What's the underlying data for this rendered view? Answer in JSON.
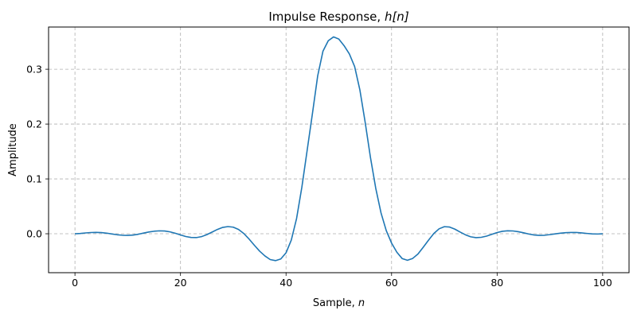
{
  "chart_data": {
    "type": "line",
    "title": {
      "prefix": "Impulse Response, ",
      "math": "h[n]"
    },
    "xlabel": {
      "prefix": "Sample, ",
      "math": "n"
    },
    "ylabel": "Amplitude",
    "xlim": [
      -5,
      105
    ],
    "ylim": [
      -0.071,
      0.377
    ],
    "x_ticks": [
      0,
      20,
      40,
      60,
      80,
      100
    ],
    "y_ticks": [
      0.0,
      0.1,
      0.2,
      0.3
    ],
    "y_tick_labels": [
      "0.0",
      "0.1",
      "0.2",
      "0.3"
    ],
    "grid": true,
    "legend": "none",
    "series": [
      {
        "color": "#1f77b4",
        "x": [
          0,
          1,
          2,
          3,
          4,
          5,
          6,
          7,
          8,
          9,
          10,
          11,
          12,
          13,
          14,
          15,
          16,
          17,
          18,
          19,
          20,
          21,
          22,
          23,
          24,
          25,
          26,
          27,
          28,
          29,
          30,
          31,
          32,
          33,
          34,
          35,
          36,
          37,
          38,
          39,
          40,
          41,
          42,
          43,
          44,
          45,
          46,
          47,
          48,
          49,
          50,
          51,
          52,
          53,
          54,
          55,
          56,
          57,
          58,
          59,
          60,
          61,
          62,
          63,
          64,
          65,
          66,
          67,
          68,
          69,
          70,
          71,
          72,
          73,
          74,
          75,
          76,
          77,
          78,
          79,
          80,
          81,
          82,
          83,
          84,
          85,
          86,
          87,
          88,
          89,
          90,
          91,
          92,
          93,
          94,
          95,
          96,
          97,
          98,
          99,
          100
        ],
        "values": [
          0.0,
          0.0005,
          0.0015,
          0.0022,
          0.0025,
          0.0021,
          0.0011,
          -0.0004,
          -0.0018,
          -0.0027,
          -0.003,
          -0.0024,
          -0.0009,
          0.0012,
          0.0032,
          0.0046,
          0.0053,
          0.005,
          0.0035,
          0.001,
          -0.0021,
          -0.005,
          -0.0068,
          -0.007,
          -0.0052,
          -0.0016,
          0.0031,
          0.0079,
          0.0116,
          0.0131,
          0.012,
          0.0079,
          0.0004,
          -0.0097,
          -0.021,
          -0.0318,
          -0.0405,
          -0.0471,
          -0.049,
          -0.046,
          -0.0348,
          -0.0115,
          0.0279,
          0.085,
          0.152,
          0.219,
          0.288,
          0.333,
          0.352,
          0.359,
          0.355,
          0.343,
          0.328,
          0.305,
          0.262,
          0.203,
          0.139,
          0.083,
          0.038,
          0.0055,
          -0.017,
          -0.0337,
          -0.0452,
          -0.0484,
          -0.045,
          -0.0369,
          -0.0246,
          -0.0117,
          0.0004,
          0.009,
          0.0129,
          0.0122,
          0.0084,
          0.003,
          -0.0019,
          -0.0056,
          -0.0071,
          -0.0065,
          -0.0043,
          -0.001,
          0.0022,
          0.0045,
          0.0054,
          0.0051,
          0.0038,
          0.0018,
          -0.0005,
          -0.0022,
          -0.003,
          -0.0027,
          -0.0016,
          -0.0002,
          0.0011,
          0.002,
          0.0024,
          0.0023,
          0.0016,
          0.0006,
          -0.0002,
          -0.0005,
          0.0
        ]
      }
    ]
  }
}
